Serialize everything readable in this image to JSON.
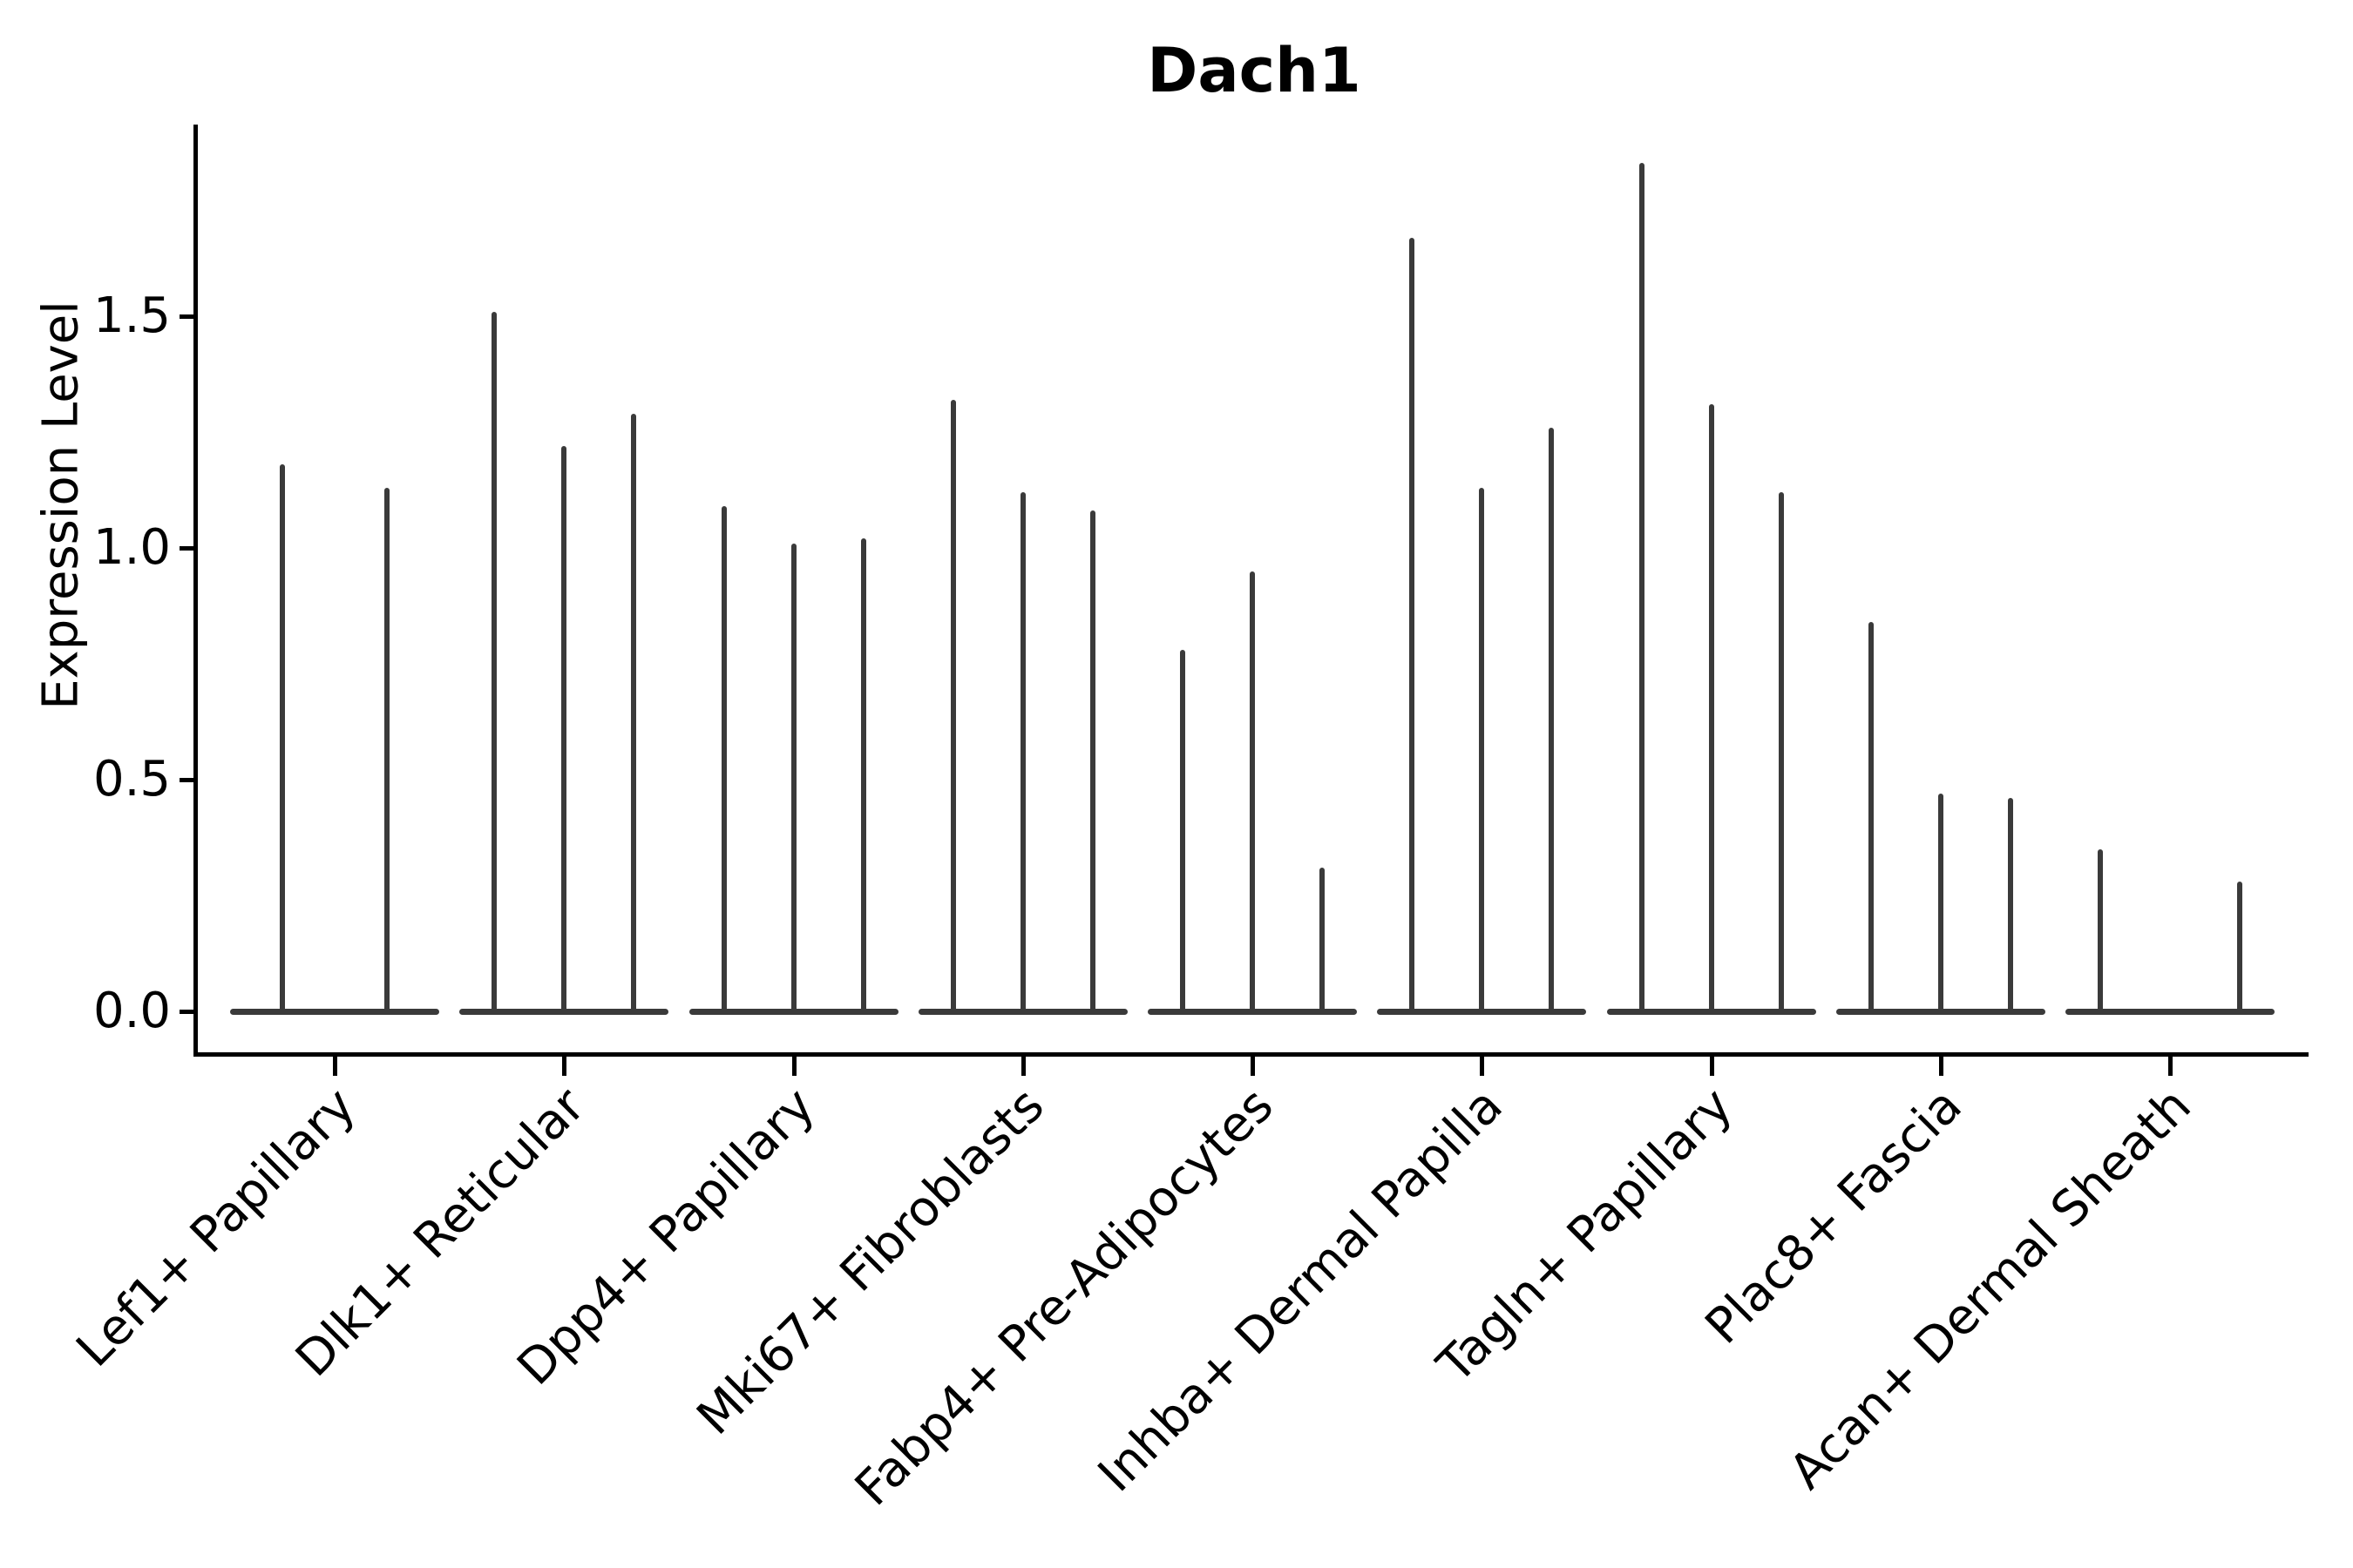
{
  "chart_data": {
    "type": "violin",
    "title": "Dach1",
    "ylabel": "Expression Level",
    "xlabel": "",
    "grid": false,
    "legend": false,
    "background_color": "#ffffff",
    "violin_color": "#3a3a3a",
    "axis_color": "#000000",
    "ylim": [
      -0.09,
      1.91
    ],
    "yticks": [
      "0.0",
      "0.5",
      "1.0",
      "1.5"
    ],
    "ytick_values": [
      0.0,
      0.5,
      1.0,
      1.5
    ],
    "categories": [
      {
        "label": "Lef1+ Papillary",
        "violin_maxima": [
          1.18,
          1.13
        ]
      },
      {
        "label": "Dlk1+ Reticular",
        "violin_maxima": [
          1.51,
          1.22,
          1.29
        ]
      },
      {
        "label": "Dpp4+ Papillary",
        "violin_maxima": [
          1.09,
          1.01,
          1.02
        ]
      },
      {
        "label": "Mki67+ Fibroblasts",
        "violin_maxima": [
          1.32,
          1.12,
          1.08
        ]
      },
      {
        "label": "Fabp4+ Pre-Adipocytes",
        "violin_maxima": [
          0.78,
          0.95,
          0.31
        ]
      },
      {
        "label": "Inhba+ Dermal Papilla",
        "violin_maxima": [
          1.67,
          1.13,
          1.26
        ]
      },
      {
        "label": "Tagln+ Papillary",
        "violin_maxima": [
          1.83,
          1.31,
          1.12
        ]
      },
      {
        "label": "Plac8+ Fascia",
        "violin_maxima": [
          0.84,
          0.47,
          0.46
        ]
      },
      {
        "label": "Acan+ Dermal Sheath",
        "violin_maxima": [
          0.35,
          0.0,
          0.28
        ]
      }
    ]
  }
}
